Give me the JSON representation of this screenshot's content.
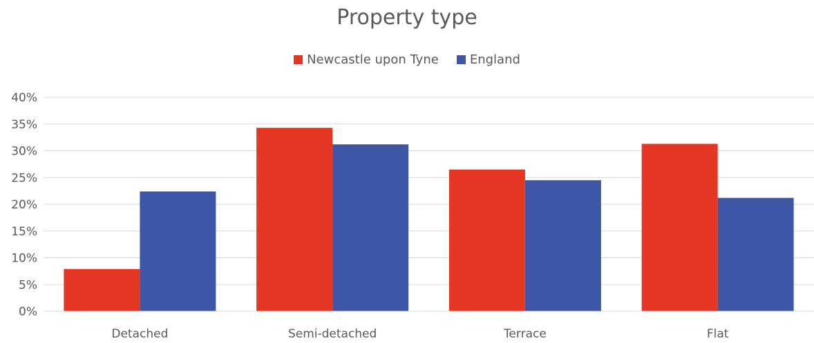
{
  "chart_data": {
    "type": "bar",
    "title": "Property type",
    "categories": [
      "Detached",
      "Semi-detached",
      "Terrace",
      "Flat"
    ],
    "series": [
      {
        "name": "Newcastle upon Tyne",
        "color": "#e53624",
        "values": [
          7.9,
          34.3,
          26.5,
          31.3
        ]
      },
      {
        "name": "England",
        "color": "#3d57a6",
        "values": [
          22.4,
          31.2,
          24.5,
          21.2
        ]
      }
    ],
    "ylim": [
      0,
      40
    ],
    "yticks": [
      "0%",
      "5%",
      "10%",
      "15%",
      "20%",
      "25%",
      "30%",
      "35%",
      "40%"
    ],
    "legend_position": "top",
    "grid": true
  }
}
